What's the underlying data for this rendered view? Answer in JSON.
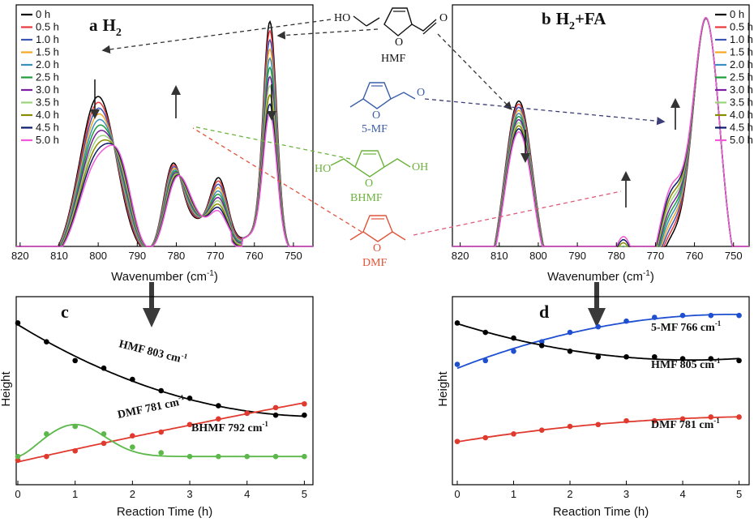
{
  "chart_data": [
    {
      "panel": "a",
      "type": "line",
      "title": "a H2",
      "xlabel": "Wavenumber (cm-1)",
      "ylabel": "",
      "xlim": [
        821,
        745
      ],
      "x_ticks": [
        820,
        810,
        800,
        790,
        780,
        770,
        760,
        750
      ],
      "legend_position": "top-left",
      "colors": [
        "#000000",
        "#e8393b",
        "#3a57b8",
        "#f5a623",
        "#3a8fc1",
        "#1f9c3a",
        "#7b1fa2",
        "#9bd47c",
        "#8b8b00",
        "#0d1a6b",
        "#f05ad6"
      ],
      "series": [
        {
          "name": "0 h",
          "t": 0
        },
        {
          "name": "0.5 h",
          "t": 0.5
        },
        {
          "name": "1.0 h",
          "t": 1.0
        },
        {
          "name": "1.5 h",
          "t": 1.5
        },
        {
          "name": "2.0 h",
          "t": 2.0
        },
        {
          "name": "2.5 h",
          "t": 2.5
        },
        {
          "name": "3.0 h",
          "t": 3.0
        },
        {
          "name": "3.5 h",
          "t": 3.5
        },
        {
          "name": "4.0 h",
          "t": 4.0
        },
        {
          "name": "4.5 h",
          "t": 4.5
        },
        {
          "name": "5.0 h",
          "t": 5.0
        }
      ]
    },
    {
      "panel": "b",
      "type": "line",
      "title": "b H2+FA",
      "xlabel": "Wavenumber (cm-1)",
      "ylabel": "",
      "xlim": [
        822,
        746
      ],
      "x_ticks": [
        820,
        810,
        800,
        790,
        780,
        770,
        760,
        750
      ],
      "legend_position": "top-right",
      "colors": [
        "#000000",
        "#e8393b",
        "#3a57b8",
        "#f5a623",
        "#3a8fc1",
        "#1f9c3a",
        "#7b1fa2",
        "#9bd47c",
        "#8b8b00",
        "#0d1a6b",
        "#f05ad6"
      ],
      "series": [
        {
          "name": "0 h",
          "t": 0
        },
        {
          "name": "0.5 h",
          "t": 0.5
        },
        {
          "name": "1.0 h",
          "t": 1.0
        },
        {
          "name": "1.5 h",
          "t": 1.5
        },
        {
          "name": "2.0 h",
          "t": 2.0
        },
        {
          "name": "2.5 h",
          "t": 2.5
        },
        {
          "name": "3.0 h",
          "t": 3.0
        },
        {
          "name": "3.5 h",
          "t": 3.5
        },
        {
          "name": "4.0 h",
          "t": 4.0
        },
        {
          "name": "4.5 h",
          "t": 4.5
        },
        {
          "name": "5.0 h",
          "t": 5.0
        }
      ]
    },
    {
      "panel": "c",
      "type": "scatter",
      "title": "c",
      "xlabel": "Reaction Time (h)",
      "ylabel": "Height",
      "xlim": [
        0,
        5.15
      ],
      "ylim": [
        0,
        1
      ],
      "x_ticks": [
        0,
        1,
        2,
        3,
        4,
        5
      ],
      "series": [
        {
          "name": "HMF 803 cm-1",
          "color": "#000000",
          "x": [
            0,
            0.5,
            1,
            1.5,
            2,
            2.5,
            3,
            3.5,
            4,
            4.5,
            5
          ],
          "y": [
            0.86,
            0.76,
            0.66,
            0.62,
            0.56,
            0.5,
            0.46,
            0.42,
            0.38,
            0.37,
            0.37
          ]
        },
        {
          "name": "DMF 781 cm-1",
          "color": "#e03a2f",
          "x": [
            0,
            0.5,
            1,
            1.5,
            2,
            2.5,
            3,
            3.5,
            4,
            4.5,
            5
          ],
          "y": [
            0.13,
            0.15,
            0.18,
            0.22,
            0.26,
            0.28,
            0.32,
            0.35,
            0.38,
            0.41,
            0.43
          ]
        },
        {
          "name": "BHMF 792 cm-1",
          "color": "#5cb84a",
          "x": [
            0,
            0.5,
            1,
            1.5,
            2,
            2.5,
            3,
            3.5,
            4,
            4.5,
            5
          ],
          "y": [
            0.15,
            0.27,
            0.31,
            0.27,
            0.2,
            0.17,
            0.15,
            0.15,
            0.15,
            0.15,
            0.15
          ]
        }
      ]
    },
    {
      "panel": "d",
      "type": "scatter",
      "title": "d",
      "xlabel": "Reaction Time (h)",
      "ylabel": "Height",
      "xlim": [
        0,
        5.15
      ],
      "ylim": [
        0,
        1
      ],
      "x_ticks": [
        0,
        1,
        2,
        3,
        4,
        5
      ],
      "series": [
        {
          "name": "5-MF 766 cm-1",
          "color": "#1f4fd1",
          "x": [
            0,
            0.5,
            1,
            1.5,
            2,
            2.5,
            3,
            3.5,
            4,
            4.5,
            5
          ],
          "y": [
            0.64,
            0.66,
            0.71,
            0.76,
            0.81,
            0.84,
            0.87,
            0.89,
            0.9,
            0.9,
            0.9
          ]
        },
        {
          "name": "HMF 805 cm-1",
          "color": "#000000",
          "x": [
            0,
            0.5,
            1,
            1.5,
            2,
            2.5,
            3,
            3.5,
            4,
            4.5,
            5
          ],
          "y": [
            0.86,
            0.81,
            0.78,
            0.74,
            0.71,
            0.68,
            0.68,
            0.68,
            0.67,
            0.67,
            0.66
          ]
        },
        {
          "name": "DMF 781 cm-1",
          "color": "#e03a2f",
          "x": [
            0,
            0.5,
            1,
            1.5,
            2,
            2.5,
            3,
            3.5,
            4,
            4.5,
            5
          ],
          "y": [
            0.23,
            0.25,
            0.27,
            0.29,
            0.31,
            0.32,
            0.34,
            0.34,
            0.35,
            0.36,
            0.36
          ]
        }
      ]
    }
  ],
  "molecules": [
    {
      "key": "hmf",
      "label": "HMF",
      "color": "#111111"
    },
    {
      "key": "5mf",
      "label": "5-MF",
      "color": "#3a5ea8"
    },
    {
      "key": "bhmf",
      "label": "BHMF",
      "color": "#6cb33e"
    },
    {
      "key": "dmf",
      "label": "DMF",
      "color": "#e0553a"
    }
  ],
  "structure_atoms": {
    "ho": "HO",
    "oh": "OH",
    "o": "O"
  },
  "panel_text": {
    "a_letter": "a",
    "a_main": "H",
    "a_sub": "2",
    "b_letter": "b",
    "b_main": "H",
    "b_sub": "2",
    "b_rest": "+FA",
    "c_letter": "c",
    "d_letter": "d",
    "wavenumber_prefix": "Wavenumber (cm",
    "wavenumber_sup": "-1",
    "wavenumber_suffix": ")",
    "cm": "cm",
    "sup": "-1"
  },
  "annotations": {
    "hmf803": "HMF 803 ",
    "dmf781c": "DMF 781 ",
    "bhmf792": "BHMF 792 ",
    "mf766": "5-MF 766 ",
    "hmf805": "HMF 805 ",
    "dmf781d": "DMF 781 "
  }
}
